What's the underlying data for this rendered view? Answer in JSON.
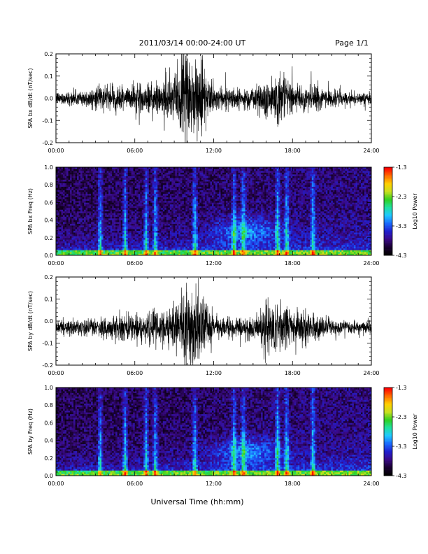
{
  "header": {
    "date_range": "2011/03/14  00:00-24:00 UT",
    "page": "Page 1/1"
  },
  "footer": {
    "xlabel": "Universal Time (hh:mm)"
  },
  "colors": {
    "trace": "#000000",
    "background": "#ffffff",
    "colormap": [
      "#000000",
      "#1a0033",
      "#3a0a8a",
      "#2020d0",
      "#1a6cff",
      "#20c8ff",
      "#20e0a0",
      "#30d020",
      "#c8e020",
      "#ffd000",
      "#ff7000",
      "#ff0000"
    ]
  },
  "chart_data": [
    {
      "type": "line",
      "ylabel": "SPA bx dB/dt (nT/sec)",
      "x_ticks": [
        "00:00",
        "06:00",
        "12:00",
        "18:00",
        "24:00"
      ],
      "y_ticks": [
        "-0.2",
        "-0.1",
        "0.0",
        "0.1",
        "0.2"
      ],
      "xlim": [
        0,
        24
      ],
      "ylim": [
        -0.2,
        0.2
      ],
      "baseline": 0.0,
      "activity": [
        {
          "hour": 0,
          "amp": 0.03
        },
        {
          "hour": 1,
          "amp": 0.035
        },
        {
          "hour": 2,
          "amp": 0.04
        },
        {
          "hour": 3,
          "amp": 0.05
        },
        {
          "hour": 4,
          "amp": 0.06
        },
        {
          "hour": 5,
          "amp": 0.06
        },
        {
          "hour": 6,
          "amp": 0.065
        },
        {
          "hour": 7,
          "amp": 0.08
        },
        {
          "hour": 8,
          "amp": 0.09
        },
        {
          "hour": 9,
          "amp": 0.11
        },
        {
          "hour": 10,
          "amp": 0.22
        },
        {
          "hour": 11,
          "amp": 0.2
        },
        {
          "hour": 12,
          "amp": 0.06
        },
        {
          "hour": 13,
          "amp": 0.055
        },
        {
          "hour": 14,
          "amp": 0.05
        },
        {
          "hour": 15,
          "amp": 0.06
        },
        {
          "hour": 16,
          "amp": 0.1
        },
        {
          "hour": 17,
          "amp": 0.13
        },
        {
          "hour": 18,
          "amp": 0.07
        },
        {
          "hour": 19,
          "amp": 0.06
        },
        {
          "hour": 20,
          "amp": 0.06
        },
        {
          "hour": 21,
          "amp": 0.04
        },
        {
          "hour": 22,
          "amp": 0.035
        },
        {
          "hour": 23,
          "amp": 0.03
        },
        {
          "hour": 24,
          "amp": 0.03
        }
      ]
    },
    {
      "type": "heatmap",
      "ylabel": "SPA bx Freq (Hz)",
      "colorbar_label": "Log10 Power",
      "colorbar_ticks": [
        "-1.3",
        "-2.3",
        "-3.3",
        "-4.3"
      ],
      "clim": [
        -4.3,
        -1.3
      ],
      "x_ticks": [
        "00:00",
        "06:00",
        "12:00",
        "18:00",
        "24:00"
      ],
      "y_ticks": [
        "0.0",
        "0.2",
        "0.4",
        "0.6",
        "0.8",
        "1.0"
      ],
      "xlim": [
        0,
        24
      ],
      "ylim": [
        0,
        1.0
      ],
      "bright_bursts_hours": [
        3.3,
        5.2,
        6.8,
        7.5,
        10.5,
        13.5,
        14.2,
        16.8,
        17.5,
        19.5
      ]
    },
    {
      "type": "line",
      "ylabel": "SPA by dB/dt (nT/sec)",
      "x_ticks": [
        "00:00",
        "06:00",
        "12:00",
        "18:00",
        "24:00"
      ],
      "y_ticks": [
        "-0.2",
        "-0.1",
        "0.0",
        "0.1",
        "0.2"
      ],
      "xlim": [
        0,
        24
      ],
      "ylim": [
        -0.2,
        0.2
      ],
      "baseline": -0.03,
      "activity": [
        {
          "hour": 0,
          "amp": 0.03
        },
        {
          "hour": 1,
          "amp": 0.035
        },
        {
          "hour": 2,
          "amp": 0.045
        },
        {
          "hour": 3,
          "amp": 0.05
        },
        {
          "hour": 4,
          "amp": 0.06
        },
        {
          "hour": 5,
          "amp": 0.065
        },
        {
          "hour": 6,
          "amp": 0.065
        },
        {
          "hour": 7,
          "amp": 0.07
        },
        {
          "hour": 8,
          "amp": 0.08
        },
        {
          "hour": 9,
          "amp": 0.09
        },
        {
          "hour": 10,
          "amp": 0.2
        },
        {
          "hour": 11,
          "amp": 0.18
        },
        {
          "hour": 12,
          "amp": 0.06
        },
        {
          "hour": 13,
          "amp": 0.05
        },
        {
          "hour": 14,
          "amp": 0.05
        },
        {
          "hour": 15,
          "amp": 0.06
        },
        {
          "hour": 16,
          "amp": 0.13
        },
        {
          "hour": 17,
          "amp": 0.14
        },
        {
          "hour": 18,
          "amp": 0.08
        },
        {
          "hour": 19,
          "amp": 0.07
        },
        {
          "hour": 20,
          "amp": 0.06
        },
        {
          "hour": 21,
          "amp": 0.04
        },
        {
          "hour": 22,
          "amp": 0.035
        },
        {
          "hour": 23,
          "amp": 0.03
        },
        {
          "hour": 24,
          "amp": 0.03
        }
      ]
    },
    {
      "type": "heatmap",
      "ylabel": "SPA by Freq (Hz)",
      "colorbar_label": "Log10 Power",
      "colorbar_ticks": [
        "-1.3",
        "-2.3",
        "-3.3",
        "-4.3"
      ],
      "clim": [
        -4.3,
        -1.3
      ],
      "x_ticks": [
        "00:00",
        "06:00",
        "12:00",
        "18:00",
        "24:00"
      ],
      "y_ticks": [
        "0.0",
        "0.2",
        "0.4",
        "0.6",
        "0.8",
        "1.0"
      ],
      "xlim": [
        0,
        24
      ],
      "ylim": [
        0,
        1.0
      ],
      "bright_bursts_hours": [
        3.3,
        5.2,
        6.8,
        7.5,
        10.5,
        13.5,
        14.2,
        16.8,
        17.5,
        19.5
      ]
    }
  ]
}
